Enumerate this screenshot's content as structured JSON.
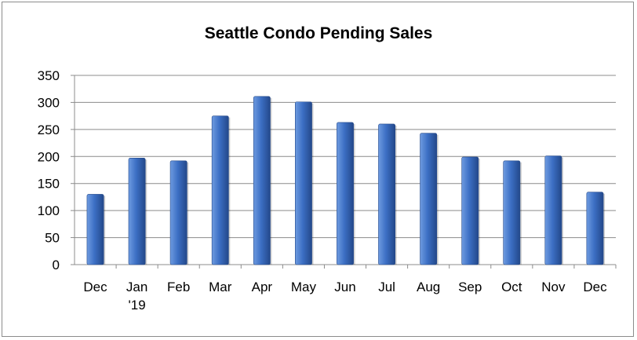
{
  "chart_data": {
    "type": "bar",
    "title": "Seattle Condo Pending Sales",
    "xlabel": "",
    "ylabel": "",
    "categories": [
      [
        "Dec"
      ],
      [
        "Jan",
        "'19"
      ],
      [
        "Feb"
      ],
      [
        "Mar"
      ],
      [
        "Apr"
      ],
      [
        "May"
      ],
      [
        "Jun"
      ],
      [
        "Jul"
      ],
      [
        "Aug"
      ],
      [
        "Sep"
      ],
      [
        "Oct"
      ],
      [
        "Nov"
      ],
      [
        "Dec"
      ]
    ],
    "values": [
      130,
      197,
      192,
      275,
      311,
      301,
      263,
      260,
      243,
      199,
      192,
      201,
      134
    ],
    "ylim": [
      0,
      350
    ],
    "yticks": [
      0,
      50,
      100,
      150,
      200,
      250,
      300,
      350
    ],
    "grid": true,
    "legend": "none",
    "colors": {
      "bar_light": "#6e9be0",
      "bar_mid": "#3c6fc4",
      "bar_dark": "#23488a",
      "grid": "#8c8c8c",
      "axis": "#8c8c8c"
    }
  }
}
